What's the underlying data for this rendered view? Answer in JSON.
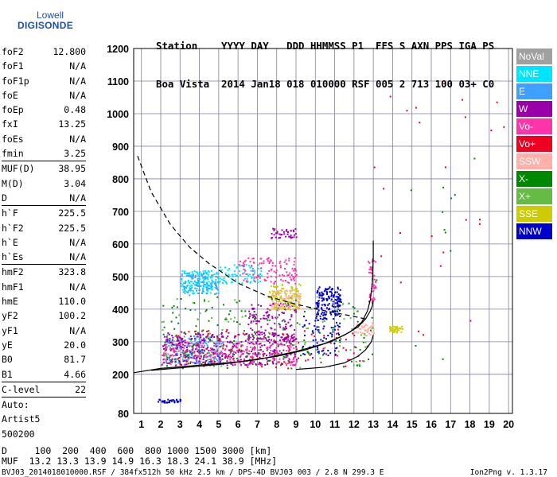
{
  "logo": {
    "line1": "Lowell",
    "line2": "DIGISONDE"
  },
  "header": {
    "line1": "Station    YYYY DAY   DDD HHMMSS P1  FFS S AXN PPS IGA PS",
    "line2": "Boa Vista  2014 Jan18 018 010000 RSF 005 2 713 100 03+ C0"
  },
  "params_group1": [
    {
      "name": "foF2",
      "value": "12.800"
    },
    {
      "name": "foF1",
      "value": "N/A"
    },
    {
      "name": "foF1p",
      "value": "N/A"
    },
    {
      "name": "foE",
      "value": "N/A"
    },
    {
      "name": "foEp",
      "value": "0.48"
    },
    {
      "name": "fxI",
      "value": "13.25"
    },
    {
      "name": "foEs",
      "value": "N/A"
    },
    {
      "name": "fmin",
      "value": "3.25"
    }
  ],
  "params_group2": [
    {
      "name": "MUF(D)",
      "value": "38.95"
    },
    {
      "name": "M(D)",
      "value": "3.04"
    },
    {
      "name": "D",
      "value": "N/A"
    }
  ],
  "params_group3": [
    {
      "name": "h`F",
      "value": "225.5"
    },
    {
      "name": "h`F2",
      "value": "225.5"
    },
    {
      "name": "h`E",
      "value": "N/A"
    },
    {
      "name": "h`Es",
      "value": "N/A"
    }
  ],
  "params_group4": [
    {
      "name": "hmF2",
      "value": "323.8"
    },
    {
      "name": "hmF1",
      "value": "N/A"
    },
    {
      "name": "hmE",
      "value": "110.0"
    },
    {
      "name": "yF2",
      "value": "100.2"
    },
    {
      "name": "yF1",
      "value": "N/A"
    },
    {
      "name": "yE",
      "value": "20.0"
    },
    {
      "name": "B0",
      "value": "81.7"
    },
    {
      "name": "B1",
      "value": "4.66"
    }
  ],
  "params_group5": [
    {
      "name": "C-level",
      "value": "22"
    }
  ],
  "autoscale": {
    "line1": "Auto:",
    "line2": "Artist5",
    "line3": "500200"
  },
  "muf_table": {
    "d_line": "D     100  200  400  600  800 1000 1500 3000 [km]",
    "muf_line": "MUF  13.2 13.3 13.9 14.9 16.3 18.3 24.1 38.9 [MHz]"
  },
  "footer": {
    "left": "BVJ03_2014018010000.RSF / 384fx512h 50 kHz 2.5 km / DPS-4D BVJ03 003 / 2.8 N 299.3 E",
    "right": "Ion2Png v. 1.3.17"
  },
  "legend": [
    {
      "label": "NoVal",
      "color": "#a0a0a0"
    },
    {
      "label": "NNE",
      "color": "#00e5ff"
    },
    {
      "label": "E",
      "color": "#3fa0ff"
    },
    {
      "label": "W",
      "color": "#9a00aa"
    },
    {
      "label": "Vo-",
      "color": "#ff33aa"
    },
    {
      "label": "Vo+",
      "color": "#ee0022"
    },
    {
      "label": "SSW",
      "color": "#ffb0a8"
    },
    {
      "label": "X-",
      "color": "#008800"
    },
    {
      "label": "X+",
      "color": "#66bb44"
    },
    {
      "label": "SSE",
      "color": "#cccc00"
    },
    {
      "label": "NNW",
      "color": "#0000cc"
    }
  ],
  "chart_data": {
    "type": "scatter",
    "title": "",
    "xlabel": "",
    "ylabel": "",
    "xlim": [
      0.6,
      20.2
    ],
    "ylim": [
      80,
      1200
    ],
    "x_ticks": [
      1,
      2,
      3,
      4,
      5,
      6,
      7,
      8,
      9,
      10,
      11,
      12,
      13,
      14,
      15,
      16,
      17,
      18,
      19,
      20
    ],
    "y_ticks": [
      80,
      200,
      300,
      400,
      500,
      600,
      700,
      800,
      900,
      1000,
      1100,
      1200
    ],
    "grid": true,
    "legend_position": "right",
    "series": [
      {
        "name": "NNE",
        "color": "#00e5ff",
        "clusters": [
          {
            "x": [
              3.0,
              5.0
            ],
            "y": [
              450,
              520
            ],
            "n": 160
          },
          {
            "x": [
              5.0,
              7.2
            ],
            "y": [
              480,
              540
            ],
            "n": 80
          }
        ]
      },
      {
        "name": "E",
        "color": "#3fa0ff",
        "clusters": [
          {
            "x": [
              2.2,
              5.2
            ],
            "y": [
              235,
              320
            ],
            "n": 250
          },
          {
            "x": [
              3.0,
              5.0
            ],
            "y": [
              445,
              515
            ],
            "n": 80
          }
        ]
      },
      {
        "name": "W",
        "color": "#9a00aa",
        "clusters": [
          {
            "x": [
              2.0,
              9.0
            ],
            "y": [
              230,
              330
            ],
            "n": 400
          },
          {
            "x": [
              6.5,
              9.0
            ],
            "y": [
              300,
              420
            ],
            "n": 140
          },
          {
            "x": [
              7.6,
              9.0
            ],
            "y": [
              620,
              650
            ],
            "n": 40
          }
        ]
      },
      {
        "name": "Vo-",
        "color": "#ff33aa",
        "clusters": [
          {
            "x": [
              6.0,
              9.0
            ],
            "y": [
              480,
              560
            ],
            "n": 110
          },
          {
            "x": [
              2.0,
              9.0
            ],
            "y": [
              230,
              300
            ],
            "n": 200
          },
          {
            "x": [
              12.7,
              13.1
            ],
            "y": [
              420,
              560
            ],
            "n": 50
          }
        ]
      },
      {
        "name": "Vo+",
        "color": "#ee0022",
        "clusters": [
          {
            "x": [
              2.5,
              12.5
            ],
            "y": [
              220,
              340
            ],
            "n": 120
          },
          {
            "x": [
              13.0,
              20.0
            ],
            "y": [
              300,
              1100
            ],
            "n": 25
          }
        ]
      },
      {
        "name": "SSW",
        "color": "#ffb0a8",
        "clusters": [
          {
            "x": [
              7.6,
              9.2
            ],
            "y": [
              400,
              460
            ],
            "n": 120
          },
          {
            "x": [
              12.0,
              13.0
            ],
            "y": [
              320,
              360
            ],
            "n": 50
          }
        ]
      },
      {
        "name": "X-",
        "color": "#008800",
        "clusters": [
          {
            "x": [
              2.0,
              13.0
            ],
            "y": [
              220,
              440
            ],
            "n": 150
          },
          {
            "x": [
              13.0,
              19.0
            ],
            "y": [
              200,
              900
            ],
            "n": 12
          }
        ]
      },
      {
        "name": "X+",
        "color": "#66bb44",
        "clusters": [
          {
            "x": [
              2.0,
              13.0
            ],
            "y": [
              220,
              440
            ],
            "n": 100
          }
        ]
      },
      {
        "name": "SSE",
        "color": "#cccc00",
        "clusters": [
          {
            "x": [
              7.6,
              9.2
            ],
            "y": [
              400,
              480
            ],
            "n": 100
          },
          {
            "x": [
              13.8,
              14.5
            ],
            "y": [
              330,
              350
            ],
            "n": 40
          }
        ]
      },
      {
        "name": "NNW",
        "color": "#0000cc",
        "clusters": [
          {
            "x": [
              10.0,
              11.3
            ],
            "y": [
              380,
              470
            ],
            "n": 150
          },
          {
            "x": [
              1.8,
              3.0
            ],
            "y": [
              115,
              125
            ],
            "n": 35
          },
          {
            "x": [
              9.3,
              11.3
            ],
            "y": [
              260,
              380
            ],
            "n": 70
          }
        ]
      }
    ],
    "curves": [
      {
        "name": "profile-solid",
        "style": "solid",
        "x": [
          0.6,
          2.0,
          4.0,
          6.0,
          8.0,
          9.5,
          10.8,
          11.8,
          12.4,
          12.7,
          12.85,
          12.95,
          13.0,
          13.0
        ],
        "y": [
          205,
          218,
          228,
          238,
          255,
          275,
          300,
          330,
          360,
          395,
          430,
          480,
          560,
          610
        ]
      },
      {
        "name": "trace-solid",
        "style": "solid",
        "x": [
          1.5,
          3.0,
          5.0,
          7.0,
          9.0,
          10.5,
          11.5,
          12.2,
          12.6,
          12.85,
          12.95,
          13.0
        ],
        "y": [
          212,
          220,
          230,
          245,
          270,
          295,
          320,
          345,
          370,
          395,
          410,
          425
        ]
      },
      {
        "name": "trace-lower",
        "style": "solid",
        "x": [
          9.0,
          10.5,
          11.5,
          12.2,
          12.6,
          12.9,
          13.0
        ],
        "y": [
          215,
          222,
          235,
          255,
          275,
          300,
          320
        ]
      },
      {
        "name": "dashed",
        "style": "dashed",
        "x": [
          0.8,
          1.5,
          2.5,
          3.5,
          4.5,
          6.0,
          7.5,
          9.0,
          10.5,
          11.8,
          12.6
        ],
        "y": [
          870,
          760,
          660,
          590,
          540,
          480,
          440,
          415,
          395,
          380,
          370
        ]
      }
    ]
  }
}
